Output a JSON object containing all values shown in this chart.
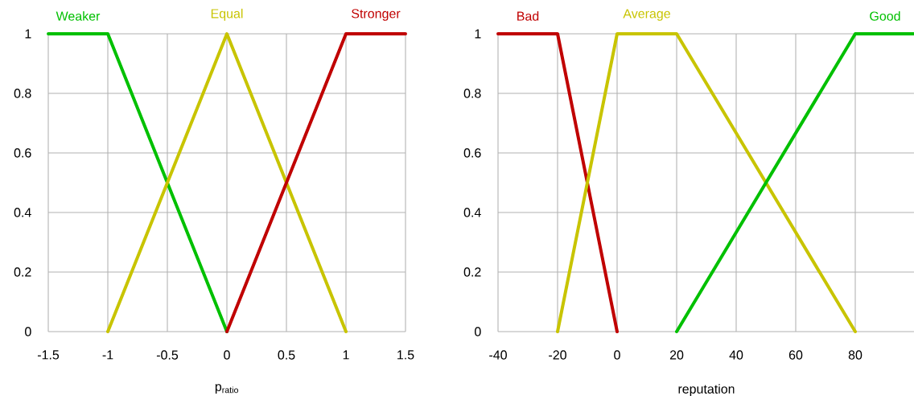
{
  "chart_data": [
    {
      "type": "line",
      "xlabel": "p$_{ratio}$",
      "xlim": [
        -1.5,
        1.5
      ],
      "xticks": [
        -1.5,
        -1,
        -0.5,
        0,
        0.5,
        1,
        1.5
      ],
      "ylim": [
        0,
        1
      ],
      "yticks": [
        0,
        0.2,
        0.4,
        0.6,
        0.8,
        1
      ],
      "grid": true,
      "legend": false,
      "marker": "none",
      "line_style": "solid",
      "series": [
        {
          "name": "Weaker",
          "color": "#00c000",
          "x": [
            -1.5,
            -1,
            0
          ],
          "values": [
            1,
            1,
            0
          ]
        },
        {
          "name": "Equal",
          "color": "#c8c400",
          "x": [
            -1,
            0,
            1
          ],
          "values": [
            0,
            1,
            0
          ]
        },
        {
          "name": "Stronger",
          "color": "#c00000",
          "x": [
            0,
            1,
            1.5
          ],
          "values": [
            0,
            1,
            1
          ]
        }
      ]
    },
    {
      "type": "line",
      "xlabel": "reputation",
      "xlim": [
        -40,
        100
      ],
      "xticks": [
        -40,
        -20,
        0,
        20,
        40,
        60,
        80
      ],
      "ylim": [
        0,
        1
      ],
      "yticks": [
        0,
        0.2,
        0.4,
        0.6,
        0.8,
        1
      ],
      "grid": true,
      "legend": false,
      "marker": "none",
      "line_style": "solid",
      "series": [
        {
          "name": "Bad",
          "color": "#c00000",
          "x": [
            -40,
            -20,
            0
          ],
          "values": [
            1,
            1,
            0
          ]
        },
        {
          "name": "Average",
          "color": "#c8c400",
          "x": [
            -20,
            0,
            20,
            80
          ],
          "values": [
            0,
            1,
            1,
            0
          ]
        },
        {
          "name": "Good",
          "color": "#00c000",
          "x": [
            20,
            80,
            100
          ],
          "values": [
            0,
            1,
            1
          ]
        }
      ]
    }
  ]
}
